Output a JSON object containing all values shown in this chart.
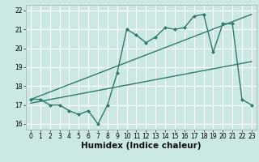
{
  "title": "",
  "xlabel": "Humidex (Indice chaleur)",
  "ylabel": "",
  "bg_color": "#cce8e4",
  "grid_color": "#ffffff",
  "line_color": "#2d7a6e",
  "xlim": [
    -0.5,
    23.5
  ],
  "ylim": [
    15.7,
    22.3
  ],
  "xticks": [
    0,
    1,
    2,
    3,
    4,
    5,
    6,
    7,
    8,
    9,
    10,
    11,
    12,
    13,
    14,
    15,
    16,
    17,
    18,
    19,
    20,
    21,
    22,
    23
  ],
  "yticks": [
    16,
    17,
    18,
    19,
    20,
    21,
    22
  ],
  "line1_x": [
    0,
    1,
    2,
    3,
    4,
    5,
    6,
    7,
    8,
    9,
    10,
    11,
    12,
    13,
    14,
    15,
    16,
    17,
    18,
    19,
    20,
    21,
    22,
    23
  ],
  "line1_y": [
    17.3,
    17.3,
    17.0,
    17.0,
    16.7,
    16.5,
    16.7,
    16.0,
    17.0,
    18.7,
    21.0,
    20.7,
    20.3,
    20.6,
    21.1,
    21.0,
    21.1,
    21.7,
    21.8,
    19.8,
    21.3,
    21.3,
    17.3,
    17.0
  ],
  "line2_x": [
    0,
    23
  ],
  "line2_y": [
    17.3,
    21.8
  ],
  "line3_x": [
    0,
    23
  ],
  "line3_y": [
    17.1,
    19.3
  ],
  "marker_size": 2.5,
  "linewidth": 1.0,
  "tick_fontsize": 5.5,
  "xlabel_fontsize": 7.5
}
